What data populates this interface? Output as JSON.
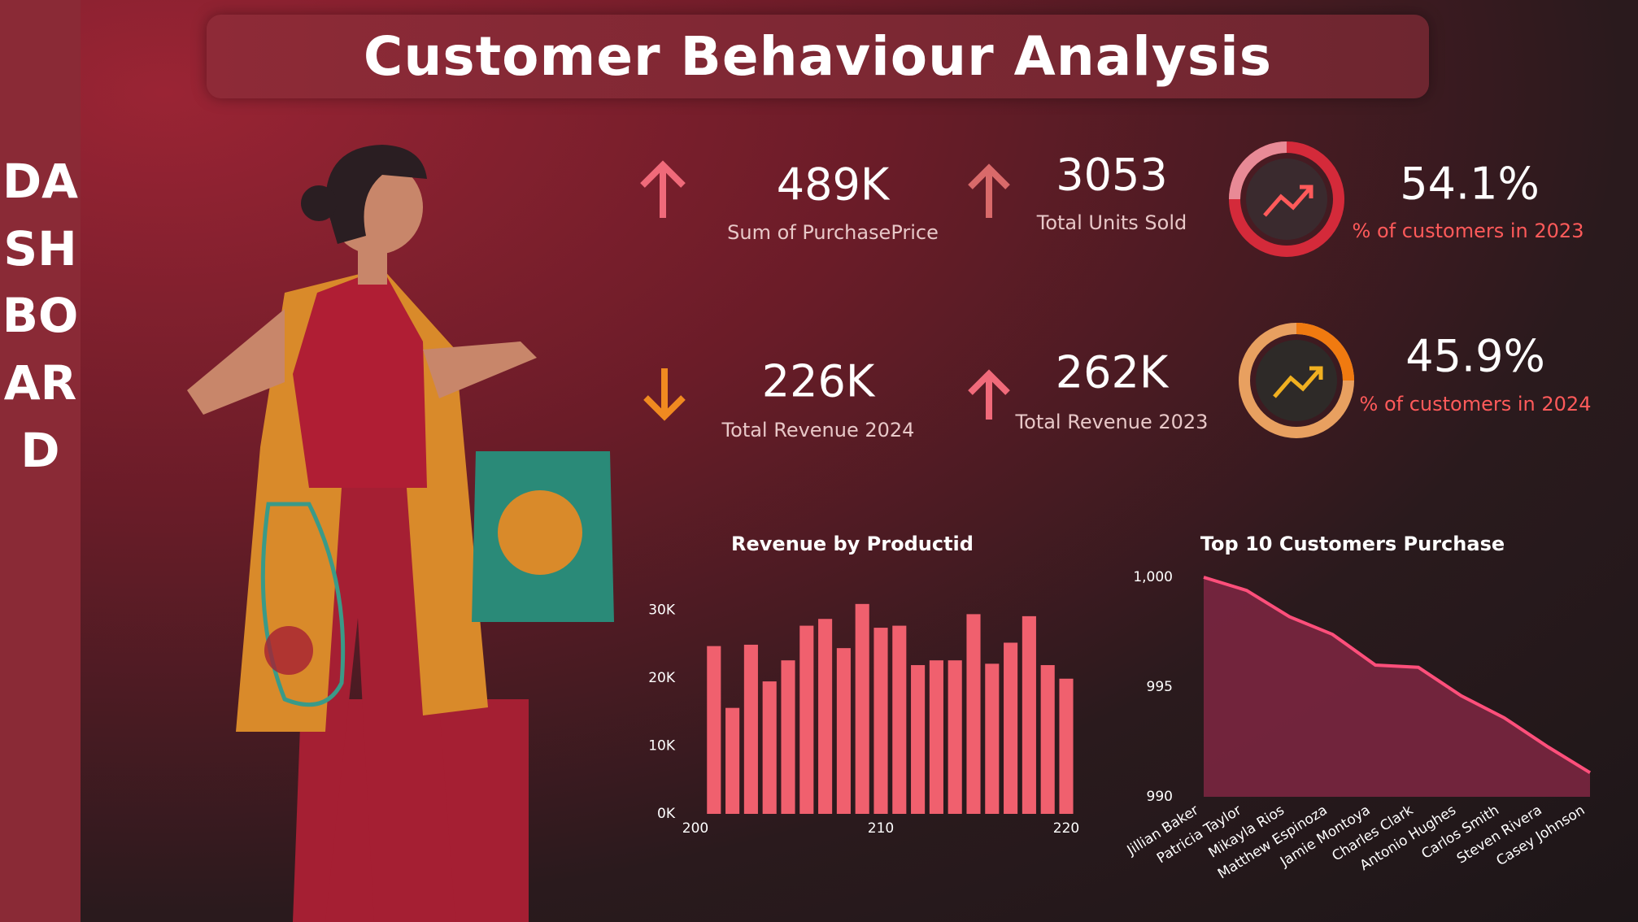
{
  "sidebar": "DASHBOARD",
  "title": "Customer Behaviour Analysis",
  "kpis": [
    {
      "value": "489K",
      "label": "Sum of PurchasePrice"
    },
    {
      "value": "3053",
      "label": "Total Units Sold"
    },
    {
      "value": "54.1%",
      "label": "% of customers in 2023"
    },
    {
      "value": "226K",
      "label": "Total Revenue 2024"
    },
    {
      "value": "262K",
      "label": "Total Revenue 2023"
    },
    {
      "value": "45.9%",
      "label": "% of customers in 2024"
    }
  ],
  "chart_data": [
    {
      "type": "bar",
      "title": "Revenue by Productid",
      "color": "#f0606e",
      "x": [
        201,
        202,
        203,
        204,
        205,
        206,
        207,
        208,
        209,
        210,
        211,
        212,
        213,
        214,
        215,
        216,
        217,
        218,
        219,
        220
      ],
      "values": [
        24700,
        15600,
        24900,
        19500,
        22600,
        27700,
        28700,
        24400,
        30900,
        27400,
        27700,
        21900,
        22600,
        22600,
        29400,
        22100,
        25200,
        29100,
        21900,
        19900
      ],
      "xlim": [
        200,
        220
      ],
      "xticks": [
        200,
        210,
        220
      ],
      "ylim": [
        0,
        31000
      ],
      "yticks": [
        {
          "value": 0,
          "label": "0K"
        },
        {
          "value": 10000,
          "label": "10K"
        },
        {
          "value": 20000,
          "label": "20K"
        },
        {
          "value": 30000,
          "label": "30K"
        }
      ]
    },
    {
      "type": "area",
      "title": "Top 10 Customers Purchase",
      "color": "#ff4f7b",
      "categories": [
        "Jillian Baker",
        "Patricia Taylor",
        "Mikayla Rios",
        "Matthew Espinoza",
        "Jamie Montoya",
        "Charles Clark",
        "Antonio Hughes",
        "Carlos Smith",
        "Steven Rivera",
        "Casey Johnson"
      ],
      "values": [
        1000,
        999.4,
        998.2,
        997.4,
        996.0,
        995.9,
        994.6,
        993.6,
        992.3,
        991.1
      ],
      "ylim": [
        990,
        1000
      ],
      "yticks": [
        990,
        995,
        {
          "value": 1000,
          "label": "1,000"
        }
      ]
    }
  ]
}
